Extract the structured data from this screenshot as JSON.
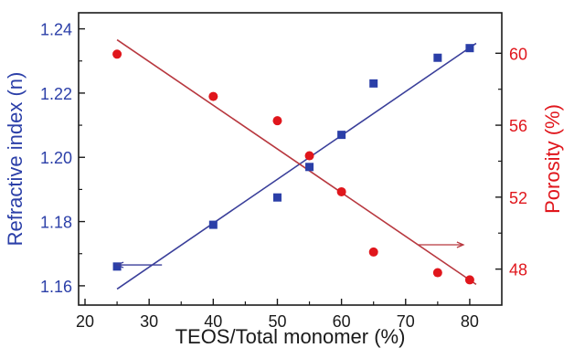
{
  "chart_data": {
    "type": "scatter",
    "xlabel": "TEOS/Total monomer (%)",
    "ylabel_left": "Refractive index (n)",
    "ylabel_right": "Porosity (%)",
    "xlim": [
      19,
      85
    ],
    "ylim_left": [
      1.154,
      1.245
    ],
    "ylim_right": [
      46.0,
      62.25
    ],
    "x_ticks": [
      20,
      30,
      40,
      50,
      60,
      70,
      80
    ],
    "y_left_ticks": [
      1.16,
      1.18,
      1.2,
      1.22,
      1.24
    ],
    "y_right_ticks": [
      48,
      52,
      56,
      60
    ],
    "colors": {
      "left": "#2b3fa8",
      "right": "#e0161c",
      "left_line": "#3a3f9a",
      "right_line": "#b8383f"
    },
    "series": [
      {
        "axis": "left",
        "marker": "square",
        "x": [
          25,
          40,
          50,
          55,
          60,
          65,
          75,
          80
        ],
        "values": [
          1.166,
          1.179,
          1.1875,
          1.197,
          1.207,
          1.223,
          1.231,
          1.234
        ],
        "fit": {
          "x": [
            25,
            81
          ],
          "y": [
            1.159,
            1.2355
          ]
        }
      },
      {
        "axis": "right",
        "marker": "circle",
        "x": [
          25,
          40,
          50,
          55,
          60,
          65,
          75,
          80
        ],
        "values": [
          59.95,
          57.6,
          56.25,
          54.3,
          52.3,
          48.95,
          47.8,
          47.4
        ],
        "fit": {
          "x": [
            25,
            81
          ],
          "y": [
            60.75,
            47.15
          ]
        }
      }
    ],
    "arrows": [
      {
        "axis": "left",
        "direction": "left",
        "x_from": 32,
        "x_to": 25,
        "y": 1.1665
      },
      {
        "axis": "right",
        "direction": "right",
        "x_from": 72,
        "x_to": 79,
        "y": 49.35
      }
    ]
  }
}
